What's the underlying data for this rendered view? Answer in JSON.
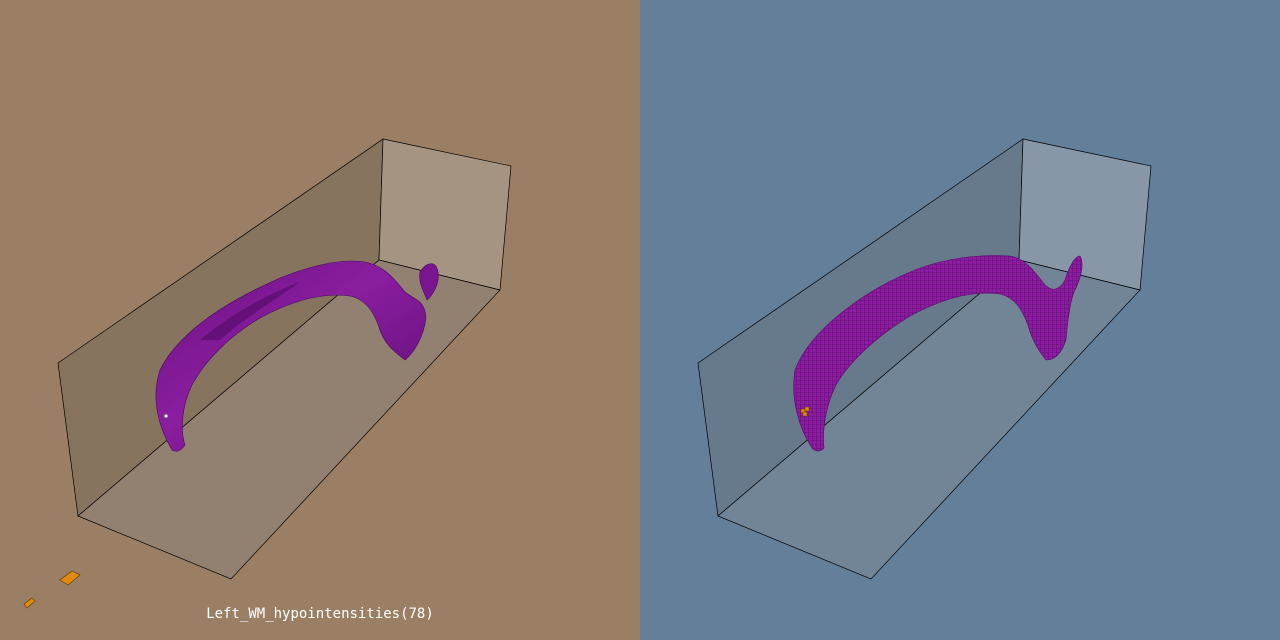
{
  "viewports": {
    "left": {
      "mode": "surface-rendering",
      "background_color": "#9A7F64",
      "object_color": "#7A1590"
    },
    "right": {
      "mode": "voxel-rendering",
      "background_color": "#647F9A",
      "object_color": "#8C1CA0"
    }
  },
  "structure": {
    "label": "Left_WM_hypointensities(78)"
  },
  "colors": {
    "highlight": "#E08A10",
    "box_edge": "#000000"
  }
}
